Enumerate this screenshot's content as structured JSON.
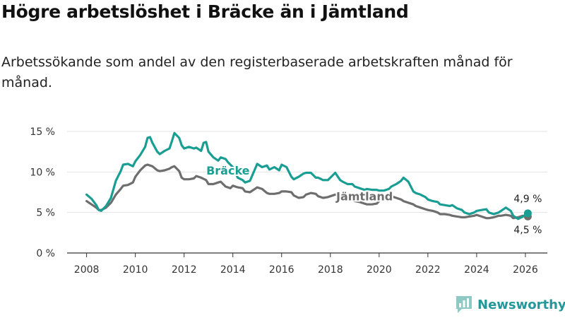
{
  "title": "Högre arbetslöshet i Bräcke än i Jämtland",
  "subtitle": "Arbetssökande som andel av den registerbaserade arbetskraften månad för månad.",
  "brand": "Newsworthy",
  "colors": {
    "bracke": "#1a9e93",
    "jamtland": "#6e6e6e",
    "grid": "#e3e3e3",
    "brand": "#23979a"
  },
  "chart_data": {
    "type": "line",
    "xlim": [
      2007.2,
      2026.9
    ],
    "ylim": [
      0,
      15
    ],
    "y_ticks": [
      0,
      5,
      10,
      15
    ],
    "y_tick_labels": [
      "0 %",
      "5 %",
      "10 %",
      "15 %"
    ],
    "x_ticks": [
      2008,
      2010,
      2012,
      2014,
      2016,
      2018,
      2020,
      2022,
      2024,
      2026
    ],
    "x_tick_labels": [
      "2008",
      "2010",
      "2012",
      "2014",
      "2016",
      "2018",
      "2020",
      "2022",
      "2024",
      "2026"
    ],
    "series": [
      {
        "name": "Bräcke",
        "key": "bracke",
        "label_at": [
          2013.8,
          9.7
        ],
        "end_value_label": "4,9 %",
        "points": [
          [
            2008.0,
            7.2
          ],
          [
            2008.2,
            6.7
          ],
          [
            2008.4,
            5.9
          ],
          [
            2008.5,
            5.3
          ],
          [
            2008.6,
            5.2
          ],
          [
            2008.8,
            5.8
          ],
          [
            2009.0,
            6.8
          ],
          [
            2009.2,
            8.9
          ],
          [
            2009.4,
            10.1
          ],
          [
            2009.5,
            10.9
          ],
          [
            2009.7,
            11.0
          ],
          [
            2009.9,
            10.7
          ],
          [
            2010.0,
            11.3
          ],
          [
            2010.2,
            12.1
          ],
          [
            2010.4,
            13.1
          ],
          [
            2010.5,
            14.2
          ],
          [
            2010.6,
            14.3
          ],
          [
            2010.7,
            13.6
          ],
          [
            2010.9,
            12.5
          ],
          [
            2011.0,
            12.2
          ],
          [
            2011.2,
            12.6
          ],
          [
            2011.4,
            12.9
          ],
          [
            2011.5,
            13.8
          ],
          [
            2011.6,
            14.8
          ],
          [
            2011.8,
            14.2
          ],
          [
            2011.9,
            13.3
          ],
          [
            2012.0,
            12.9
          ],
          [
            2012.2,
            13.1
          ],
          [
            2012.4,
            12.9
          ],
          [
            2012.5,
            13.0
          ],
          [
            2012.7,
            12.6
          ],
          [
            2012.8,
            13.6
          ],
          [
            2012.9,
            13.7
          ],
          [
            2013.0,
            12.5
          ],
          [
            2013.2,
            11.8
          ],
          [
            2013.4,
            11.4
          ],
          [
            2013.5,
            11.8
          ],
          [
            2013.7,
            11.6
          ],
          [
            2013.8,
            11.2
          ],
          [
            2014.0,
            10.6
          ],
          [
            2014.2,
            9.3
          ],
          [
            2014.4,
            9.0
          ],
          [
            2014.5,
            8.7
          ],
          [
            2014.7,
            8.9
          ],
          [
            2014.9,
            10.3
          ],
          [
            2015.0,
            11.0
          ],
          [
            2015.2,
            10.6
          ],
          [
            2015.4,
            10.8
          ],
          [
            2015.5,
            10.3
          ],
          [
            2015.7,
            10.6
          ],
          [
            2015.9,
            10.2
          ],
          [
            2016.0,
            10.9
          ],
          [
            2016.2,
            10.6
          ],
          [
            2016.4,
            9.4
          ],
          [
            2016.5,
            9.1
          ],
          [
            2016.7,
            9.4
          ],
          [
            2016.9,
            9.8
          ],
          [
            2017.0,
            9.9
          ],
          [
            2017.2,
            9.9
          ],
          [
            2017.4,
            9.3
          ],
          [
            2017.5,
            9.3
          ],
          [
            2017.7,
            9.0
          ],
          [
            2017.9,
            9.0
          ],
          [
            2018.0,
            9.3
          ],
          [
            2018.2,
            9.9
          ],
          [
            2018.4,
            9.0
          ],
          [
            2018.5,
            8.8
          ],
          [
            2018.7,
            8.5
          ],
          [
            2018.9,
            8.5
          ],
          [
            2019.0,
            8.2
          ],
          [
            2019.2,
            8.0
          ],
          [
            2019.4,
            7.8
          ],
          [
            2019.5,
            7.9
          ],
          [
            2019.7,
            7.8
          ],
          [
            2019.9,
            7.8
          ],
          [
            2020.0,
            7.7
          ],
          [
            2020.2,
            7.7
          ],
          [
            2020.4,
            7.9
          ],
          [
            2020.5,
            8.2
          ],
          [
            2020.7,
            8.5
          ],
          [
            2020.9,
            8.9
          ],
          [
            2021.0,
            9.3
          ],
          [
            2021.2,
            8.8
          ],
          [
            2021.4,
            7.6
          ],
          [
            2021.5,
            7.4
          ],
          [
            2021.7,
            7.2
          ],
          [
            2021.9,
            6.9
          ],
          [
            2022.0,
            6.6
          ],
          [
            2022.2,
            6.4
          ],
          [
            2022.4,
            6.3
          ],
          [
            2022.5,
            6.0
          ],
          [
            2022.7,
            5.9
          ],
          [
            2022.9,
            5.8
          ],
          [
            2023.0,
            5.9
          ],
          [
            2023.2,
            5.5
          ],
          [
            2023.4,
            5.3
          ],
          [
            2023.5,
            5.0
          ],
          [
            2023.7,
            4.8
          ],
          [
            2023.9,
            5.0
          ],
          [
            2024.0,
            5.2
          ],
          [
            2024.2,
            5.3
          ],
          [
            2024.4,
            5.4
          ],
          [
            2024.5,
            5.0
          ],
          [
            2024.7,
            4.8
          ],
          [
            2024.9,
            5.0
          ],
          [
            2025.0,
            5.2
          ],
          [
            2025.2,
            5.6
          ],
          [
            2025.4,
            5.2
          ],
          [
            2025.5,
            4.6
          ],
          [
            2025.7,
            4.2
          ],
          [
            2025.9,
            4.5
          ],
          [
            2026.0,
            4.7
          ],
          [
            2026.1,
            4.9
          ]
        ]
      },
      {
        "name": "Jämtland",
        "key": "jamtland",
        "label_at": [
          2019.4,
          6.5
        ],
        "end_value_label": "4,5 %",
        "points": [
          [
            2008.0,
            6.4
          ],
          [
            2008.2,
            6.0
          ],
          [
            2008.4,
            5.6
          ],
          [
            2008.5,
            5.3
          ],
          [
            2008.6,
            5.3
          ],
          [
            2008.8,
            5.6
          ],
          [
            2009.0,
            6.2
          ],
          [
            2009.2,
            7.2
          ],
          [
            2009.4,
            7.9
          ],
          [
            2009.5,
            8.3
          ],
          [
            2009.7,
            8.4
          ],
          [
            2009.9,
            8.7
          ],
          [
            2010.0,
            9.4
          ],
          [
            2010.2,
            10.2
          ],
          [
            2010.4,
            10.8
          ],
          [
            2010.5,
            10.9
          ],
          [
            2010.7,
            10.7
          ],
          [
            2010.9,
            10.2
          ],
          [
            2011.0,
            10.1
          ],
          [
            2011.2,
            10.2
          ],
          [
            2011.4,
            10.4
          ],
          [
            2011.5,
            10.6
          ],
          [
            2011.6,
            10.7
          ],
          [
            2011.8,
            10.1
          ],
          [
            2011.9,
            9.3
          ],
          [
            2012.0,
            9.1
          ],
          [
            2012.2,
            9.1
          ],
          [
            2012.4,
            9.2
          ],
          [
            2012.5,
            9.5
          ],
          [
            2012.7,
            9.3
          ],
          [
            2012.9,
            9.0
          ],
          [
            2013.0,
            8.5
          ],
          [
            2013.2,
            8.5
          ],
          [
            2013.4,
            8.7
          ],
          [
            2013.5,
            8.8
          ],
          [
            2013.7,
            8.2
          ],
          [
            2013.9,
            8.0
          ],
          [
            2014.0,
            8.3
          ],
          [
            2014.2,
            8.1
          ],
          [
            2014.4,
            8.0
          ],
          [
            2014.5,
            7.6
          ],
          [
            2014.7,
            7.5
          ],
          [
            2014.9,
            7.9
          ],
          [
            2015.0,
            8.1
          ],
          [
            2015.2,
            7.9
          ],
          [
            2015.4,
            7.4
          ],
          [
            2015.5,
            7.3
          ],
          [
            2015.7,
            7.3
          ],
          [
            2015.9,
            7.4
          ],
          [
            2016.0,
            7.6
          ],
          [
            2016.2,
            7.6
          ],
          [
            2016.4,
            7.5
          ],
          [
            2016.5,
            7.1
          ],
          [
            2016.7,
            6.8
          ],
          [
            2016.9,
            6.9
          ],
          [
            2017.0,
            7.2
          ],
          [
            2017.2,
            7.4
          ],
          [
            2017.4,
            7.3
          ],
          [
            2017.5,
            7.0
          ],
          [
            2017.7,
            6.8
          ],
          [
            2017.9,
            6.9
          ],
          [
            2018.0,
            7.0
          ],
          [
            2018.2,
            7.2
          ],
          [
            2018.4,
            7.1
          ],
          [
            2018.5,
            6.8
          ],
          [
            2018.7,
            6.5
          ],
          [
            2018.9,
            6.5
          ],
          [
            2019.0,
            6.4
          ],
          [
            2019.2,
            6.3
          ],
          [
            2019.4,
            6.1
          ],
          [
            2019.5,
            6.0
          ],
          [
            2019.7,
            6.0
          ],
          [
            2019.9,
            6.1
          ],
          [
            2020.0,
            6.4
          ],
          [
            2020.2,
            6.8
          ],
          [
            2020.4,
            7.0
          ],
          [
            2020.5,
            7.0
          ],
          [
            2020.7,
            6.8
          ],
          [
            2020.9,
            6.6
          ],
          [
            2021.0,
            6.4
          ],
          [
            2021.2,
            6.2
          ],
          [
            2021.4,
            6.0
          ],
          [
            2021.5,
            5.8
          ],
          [
            2021.7,
            5.6
          ],
          [
            2021.9,
            5.4
          ],
          [
            2022.0,
            5.3
          ],
          [
            2022.2,
            5.2
          ],
          [
            2022.4,
            5.0
          ],
          [
            2022.5,
            4.8
          ],
          [
            2022.7,
            4.8
          ],
          [
            2022.9,
            4.7
          ],
          [
            2023.0,
            4.6
          ],
          [
            2023.2,
            4.5
          ],
          [
            2023.4,
            4.4
          ],
          [
            2023.5,
            4.4
          ],
          [
            2023.7,
            4.5
          ],
          [
            2023.9,
            4.6
          ],
          [
            2024.0,
            4.7
          ],
          [
            2024.2,
            4.5
          ],
          [
            2024.4,
            4.3
          ],
          [
            2024.5,
            4.3
          ],
          [
            2024.7,
            4.4
          ],
          [
            2024.9,
            4.6
          ],
          [
            2025.0,
            4.6
          ],
          [
            2025.2,
            4.7
          ],
          [
            2025.4,
            4.6
          ],
          [
            2025.5,
            4.3
          ],
          [
            2025.7,
            4.4
          ],
          [
            2025.9,
            4.6
          ],
          [
            2026.0,
            4.5
          ],
          [
            2026.1,
            4.5
          ]
        ]
      }
    ]
  }
}
